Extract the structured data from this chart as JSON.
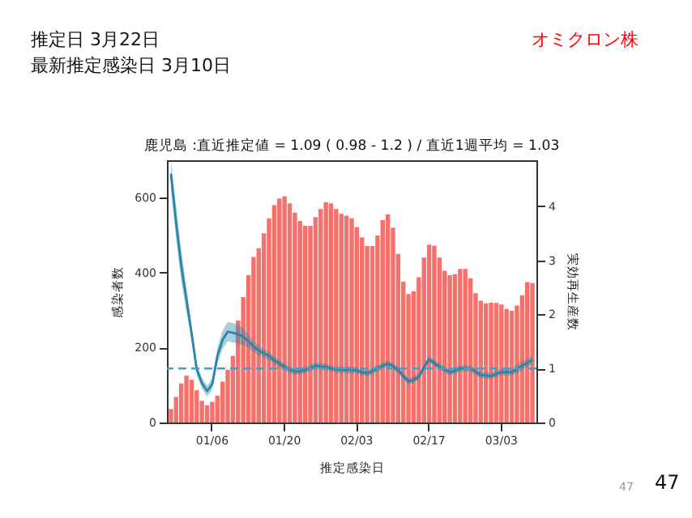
{
  "chart_data": {
    "type": "bar",
    "title": "鹿児島 :直近推定値 = 1.09 ( 0.98 - 1.2 ) / 直近1週平均 = 1.03",
    "xlabel": "推定感染日",
    "ylabel": "感染者数",
    "y2label": "実効再生産数",
    "annotations": [
      "推定日  3月22日",
      "最新推定感染日  3月10日",
      "オミクロン株",
      "47",
      "47"
    ],
    "categories": [
      null,
      null,
      null,
      null,
      null,
      null,
      null,
      null,
      "01/06",
      null,
      null,
      null,
      null,
      null,
      null,
      null,
      null,
      null,
      null,
      null,
      null,
      null,
      "01/20",
      null,
      null,
      null,
      null,
      null,
      null,
      null,
      null,
      null,
      null,
      null,
      null,
      null,
      "02/03",
      null,
      null,
      null,
      null,
      null,
      null,
      null,
      null,
      null,
      null,
      null,
      null,
      null,
      "02/17",
      null,
      null,
      null,
      null,
      null,
      null,
      null,
      null,
      null,
      null,
      null,
      null,
      null,
      "03/03",
      null,
      null,
      null,
      null,
      null,
      null
    ],
    "series": [
      {
        "type": "bar",
        "color": "#f4716c",
        "values": [
          36,
          68,
          104,
          125,
          114,
          86,
          58,
          46,
          55,
          72,
          109,
          141,
          178,
          272,
          335,
          393,
          442,
          465,
          505,
          545,
          580,
          598,
          604,
          585,
          560,
          538,
          525,
          525,
          548,
          570,
          588,
          585,
          570,
          557,
          552,
          545,
          522,
          494,
          471,
          471,
          499,
          540,
          556,
          520,
          450,
          376,
          343,
          350,
          388,
          440,
          475,
          472,
          440,
          405,
          393,
          396,
          410,
          410,
          385,
          345,
          325,
          318,
          320,
          319,
          315,
          303,
          298,
          312,
          340,
          375,
          372
        ]
      },
      {
        "type": "line",
        "axis": "y2",
        "color": "#2a86a8",
        "values": [
          4.6,
          3.7,
          2.9,
          2.28,
          1.65,
          0.98,
          0.73,
          0.58,
          0.71,
          1.23,
          1.53,
          1.68,
          1.66,
          1.63,
          1.59,
          1.5,
          1.41,
          1.33,
          1.28,
          1.23,
          1.15,
          1.09,
          1.03,
          0.98,
          0.94,
          0.95,
          0.97,
          1.01,
          1.05,
          1.04,
          1.03,
          1.0,
          0.98,
          0.97,
          0.97,
          0.97,
          0.96,
          0.93,
          0.91,
          0.95,
          1.0,
          1.05,
          1.09,
          1.04,
          0.97,
          0.86,
          0.76,
          0.79,
          0.85,
          1.02,
          1.17,
          1.1,
          1.03,
          0.98,
          0.93,
          0.96,
          1.0,
          1.0,
          1.0,
          0.94,
          0.88,
          0.87,
          0.86,
          0.9,
          0.93,
          0.93,
          0.93,
          0.99,
          1.05,
          1.1,
          1.16
        ],
        "lower": [
          4.3,
          3.4,
          2.6,
          2.05,
          1.5,
          0.88,
          0.63,
          0.48,
          0.6,
          1.08,
          1.36,
          1.5,
          1.48,
          1.46,
          1.43,
          1.38,
          1.31,
          1.24,
          1.2,
          1.15,
          1.08,
          1.02,
          0.97,
          0.92,
          0.88,
          0.89,
          0.91,
          0.95,
          0.99,
          0.98,
          0.97,
          0.94,
          0.92,
          0.91,
          0.91,
          0.91,
          0.9,
          0.87,
          0.85,
          0.89,
          0.94,
          0.99,
          1.03,
          0.98,
          0.91,
          0.8,
          0.7,
          0.73,
          0.79,
          0.96,
          1.11,
          1.04,
          0.97,
          0.92,
          0.87,
          0.9,
          0.94,
          0.94,
          0.94,
          0.88,
          0.82,
          0.81,
          0.8,
          0.84,
          0.87,
          0.87,
          0.87,
          0.91,
          0.97,
          1.02,
          1.08
        ],
        "upper": [
          4.85,
          4.0,
          3.2,
          2.5,
          1.8,
          1.08,
          0.83,
          0.68,
          0.82,
          1.38,
          1.7,
          1.86,
          1.84,
          1.8,
          1.75,
          1.62,
          1.51,
          1.42,
          1.36,
          1.31,
          1.22,
          1.16,
          1.09,
          1.04,
          1.0,
          1.01,
          1.03,
          1.07,
          1.11,
          1.1,
          1.09,
          1.06,
          1.04,
          1.03,
          1.03,
          1.03,
          1.02,
          0.99,
          0.97,
          1.01,
          1.06,
          1.11,
          1.15,
          1.1,
          1.03,
          0.92,
          0.82,
          0.85,
          0.91,
          1.08,
          1.23,
          1.16,
          1.09,
          1.04,
          0.99,
          1.02,
          1.06,
          1.06,
          1.06,
          1.0,
          0.94,
          0.93,
          0.92,
          0.96,
          0.99,
          0.99,
          0.99,
          1.07,
          1.13,
          1.18,
          1.24
        ]
      }
    ],
    "ylim": [
      0,
      700
    ],
    "yticks": [
      0,
      200,
      400,
      600
    ],
    "y2lim": [
      0,
      4.85
    ],
    "y2ticks": [
      0,
      1,
      2,
      3,
      4
    ],
    "ref_lines": [
      {
        "axis": "y2",
        "value": 1,
        "color": "#4a9cc4",
        "line_style": "dashed"
      }
    ],
    "marker": "none",
    "line_style": "solid"
  }
}
